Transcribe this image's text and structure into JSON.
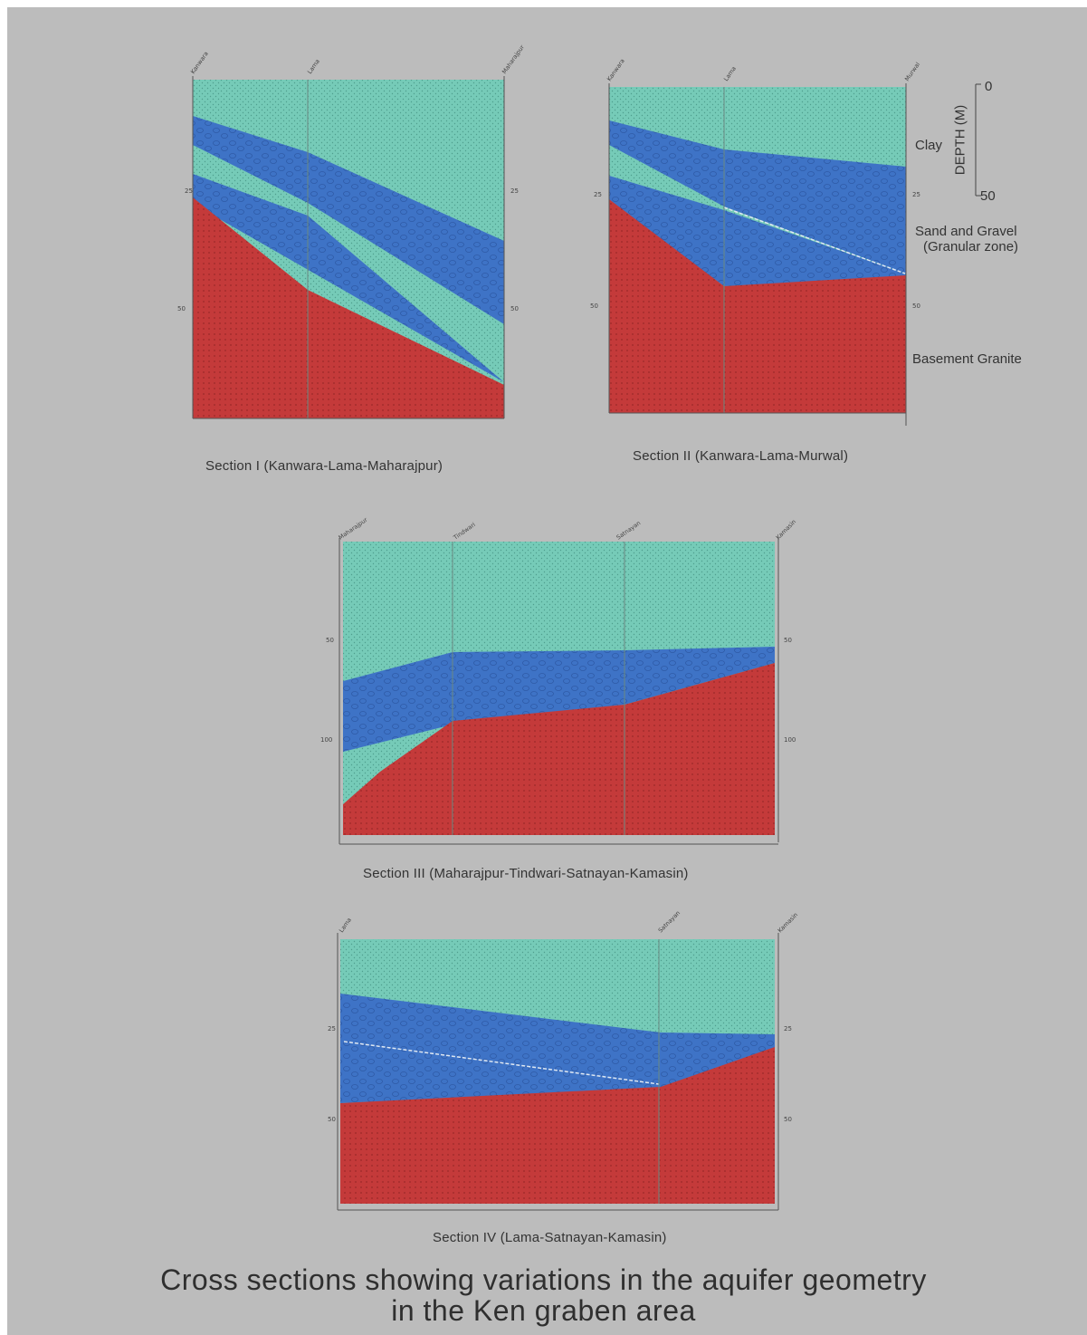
{
  "colors": {
    "background": "#bcbcbc",
    "clay": "#76cbb8",
    "sand_gravel": "#3e73c6",
    "granite": "#c43a3a"
  },
  "legend": {
    "axis_title": "DEPTH (M)",
    "axis_top": "0",
    "axis_bottom": "50",
    "clay": "Clay",
    "sand_gravel_line1": "Sand and Gravel",
    "sand_gravel_line2": "(Granular zone)",
    "granite": "Basement Granite"
  },
  "sections": [
    {
      "id": "s1",
      "caption": "Section I (Kanwara-Lama-Maharajpur)"
    },
    {
      "id": "s2",
      "caption": "Section II (Kanwara-Lama-Murwal)"
    },
    {
      "id": "s3",
      "caption": "Section III (Maharajpur-Tindwari-Satnayan-Kamasin)"
    },
    {
      "id": "s4",
      "caption": "Section IV (Lama-Satnayan-Kamasin)"
    }
  ],
  "title_line1": "Cross sections showing variations in the  aquifer geometry",
  "title_line2": "in the Ken graben area"
}
